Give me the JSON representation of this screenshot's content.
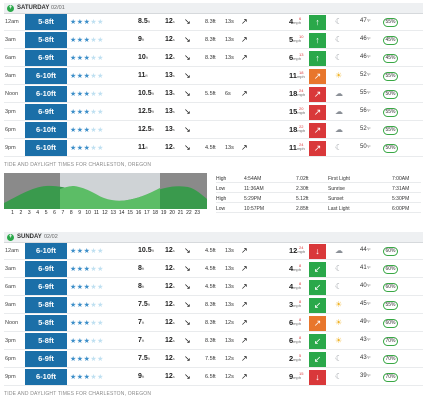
{
  "days": [
    {
      "name": "SATURDAY",
      "date": "02/01",
      "tide_title": "TIDE AND DAYLIGHT TIMES FOR CHARLESTON, OREGON",
      "rows": [
        {
          "time": "12am",
          "size": "5-8ft",
          "stars": 3,
          "height": "8.5",
          "height_unit": "ft",
          "period": "12",
          "period_unit": "s",
          "swell_dir": "↘",
          "sw2h": "8.3ft",
          "sw2p": "13s",
          "sw2_dir": "↗",
          "wind": "4",
          "wind_unit": "mph",
          "gust": "6",
          "wind_color": "#2aa84a",
          "wind_arrow": "↑",
          "weather": "moon",
          "temp": "47",
          "temp_unit": "°F",
          "pct": "55%"
        },
        {
          "time": "3am",
          "size": "5-8ft",
          "stars": 3,
          "height": "9",
          "height_unit": "ft",
          "period": "12",
          "period_unit": "s",
          "swell_dir": "↘",
          "sw2h": "8.3ft",
          "sw2p": "13s",
          "sw2_dir": "↗",
          "wind": "5",
          "wind_unit": "mph",
          "gust": "10",
          "wind_color": "#2aa84a",
          "wind_arrow": "↑",
          "weather": "moon",
          "temp": "46",
          "temp_unit": "°F",
          "pct": "45%"
        },
        {
          "time": "6am",
          "size": "6-9ft",
          "stars": 3,
          "height": "10",
          "height_unit": "ft",
          "period": "12",
          "period_unit": "s",
          "swell_dir": "↘",
          "sw2h": "8.3ft",
          "sw2p": "13s",
          "sw2_dir": "↗",
          "wind": "6",
          "wind_unit": "mph",
          "gust": "13",
          "wind_color": "#2aa84a",
          "wind_arrow": "↑",
          "weather": "moon",
          "temp": "46",
          "temp_unit": "°F",
          "pct": "45%"
        },
        {
          "time": "9am",
          "size": "6-10ft",
          "stars": 3,
          "height": "11",
          "height_unit": "ft",
          "period": "13",
          "period_unit": "s",
          "swell_dir": "↘",
          "sw2h": "",
          "sw2p": "",
          "sw2_dir": "",
          "wind": "11",
          "wind_unit": "mph",
          "gust": "18",
          "wind_color": "#e8762c",
          "wind_arrow": "↗",
          "weather": "sun",
          "temp": "52",
          "temp_unit": "°F",
          "pct": "55%"
        },
        {
          "time": "Noon",
          "size": "6-10ft",
          "stars": 3,
          "height": "10.5",
          "height_unit": "ft",
          "period": "13",
          "period_unit": "s",
          "swell_dir": "↘",
          "sw2h": "5.5ft",
          "sw2p": "6s",
          "sw2_dir": "↗",
          "wind": "18",
          "wind_unit": "mph",
          "gust": "24",
          "wind_color": "#d9383a",
          "wind_arrow": "↗",
          "weather": "cloud",
          "temp": "55",
          "temp_unit": "°F",
          "pct": "50%"
        },
        {
          "time": "3pm",
          "size": "6-9ft",
          "stars": 3,
          "height": "12.5",
          "height_unit": "ft",
          "period": "13",
          "period_unit": "s",
          "swell_dir": "↘",
          "sw2h": "",
          "sw2p": "",
          "sw2_dir": "",
          "wind": "15",
          "wind_unit": "mph",
          "gust": "20",
          "wind_color": "#d9383a",
          "wind_arrow": "↗",
          "weather": "cloud",
          "temp": "56",
          "temp_unit": "°F",
          "pct": "55%"
        },
        {
          "time": "6pm",
          "size": "6-10ft",
          "stars": 3,
          "height": "12.5",
          "height_unit": "ft",
          "period": "13",
          "period_unit": "s",
          "swell_dir": "↘",
          "sw2h": "",
          "sw2p": "",
          "sw2_dir": "",
          "wind": "18",
          "wind_unit": "mph",
          "gust": "22",
          "wind_color": "#d9383a",
          "wind_arrow": "↗",
          "weather": "cloud",
          "temp": "52",
          "temp_unit": "°F",
          "pct": "55%"
        },
        {
          "time": "9pm",
          "size": "6-10ft",
          "stars": 3,
          "height": "11",
          "height_unit": "ft",
          "period": "12",
          "period_unit": "s",
          "swell_dir": "↘",
          "sw2h": "4.5ft",
          "sw2p": "13s",
          "sw2_dir": "↗",
          "wind": "11",
          "wind_unit": "mph",
          "gust": "24",
          "wind_color": "#d9383a",
          "wind_arrow": "↗",
          "weather": "moon",
          "temp": "50",
          "temp_unit": "°F",
          "pct": "50%"
        }
      ]
    },
    {
      "name": "SUNDAY",
      "date": "02/02",
      "tide_title": "TIDE AND DAYLIGHT TIMES FOR CHARLESTON, OREGON",
      "rows": [
        {
          "time": "12am",
          "size": "6-10ft",
          "stars": 3,
          "height": "10.5",
          "height_unit": "ft",
          "period": "12",
          "period_unit": "s",
          "swell_dir": "↘",
          "sw2h": "4.5ft",
          "sw2p": "13s",
          "sw2_dir": "↗",
          "wind": "12",
          "wind_unit": "mph",
          "gust": "24",
          "wind_color": "#d9383a",
          "wind_arrow": "↓",
          "weather": "cloud",
          "temp": "44",
          "temp_unit": "°F",
          "pct": "60%"
        },
        {
          "time": "3am",
          "size": "6-9ft",
          "stars": 3,
          "height": "8",
          "height_unit": "ft",
          "period": "12",
          "period_unit": "s",
          "swell_dir": "↘",
          "sw2h": "4.5ft",
          "sw2p": "13s",
          "sw2_dir": "↗",
          "wind": "4",
          "wind_unit": "mph",
          "gust": "8",
          "wind_color": "#2aa84a",
          "wind_arrow": "↙",
          "weather": "moon",
          "temp": "41",
          "temp_unit": "°F",
          "pct": "60%"
        },
        {
          "time": "6am",
          "size": "6-9ft",
          "stars": 3,
          "height": "8",
          "height_unit": "ft",
          "period": "12",
          "period_unit": "s",
          "swell_dir": "↘",
          "sw2h": "4.5ft",
          "sw2p": "13s",
          "sw2_dir": "↗",
          "wind": "4",
          "wind_unit": "mph",
          "gust": "8",
          "wind_color": "#2aa84a",
          "wind_arrow": "↙",
          "weather": "moon",
          "temp": "40",
          "temp_unit": "°F",
          "pct": "60%"
        },
        {
          "time": "9am",
          "size": "5-8ft",
          "stars": 3,
          "height": "7.5",
          "height_unit": "ft",
          "period": "12",
          "period_unit": "s",
          "swell_dir": "↘",
          "sw2h": "8.3ft",
          "sw2p": "13s",
          "sw2_dir": "↗",
          "wind": "3",
          "wind_unit": "mph",
          "gust": "8",
          "wind_color": "#2aa84a",
          "wind_arrow": "↙",
          "weather": "sun",
          "temp": "45",
          "temp_unit": "°F",
          "pct": "55%"
        },
        {
          "time": "Noon",
          "size": "5-8ft",
          "stars": 3,
          "height": "7",
          "height_unit": "ft",
          "period": "12",
          "period_unit": "s",
          "swell_dir": "↘",
          "sw2h": "8.3ft",
          "sw2p": "12s",
          "sw2_dir": "↗",
          "wind": "6",
          "wind_unit": "mph",
          "gust": "8",
          "wind_color": "#e8762c",
          "wind_arrow": "↗",
          "weather": "sun",
          "temp": "49",
          "temp_unit": "°F",
          "pct": "60%"
        },
        {
          "time": "3pm",
          "size": "5-8ft",
          "stars": 3,
          "height": "7",
          "height_unit": "ft",
          "period": "12",
          "period_unit": "s",
          "swell_dir": "↘",
          "sw2h": "8.3ft",
          "sw2p": "13s",
          "sw2_dir": "↗",
          "wind": "6",
          "wind_unit": "mph",
          "gust": "8",
          "wind_color": "#2aa84a",
          "wind_arrow": "↙",
          "weather": "sun",
          "temp": "43",
          "temp_unit": "°F",
          "pct": "70%"
        },
        {
          "time": "6pm",
          "size": "6-9ft",
          "stars": 3,
          "height": "7.5",
          "height_unit": "ft",
          "period": "12",
          "period_unit": "s",
          "swell_dir": "↘",
          "sw2h": "7.5ft",
          "sw2p": "12s",
          "sw2_dir": "↗",
          "wind": "2",
          "wind_unit": "mph",
          "gust": "5",
          "wind_color": "#2aa84a",
          "wind_arrow": "↙",
          "weather": "moon",
          "temp": "43",
          "temp_unit": "°F",
          "pct": "70%"
        },
        {
          "time": "9pm",
          "size": "6-10ft",
          "stars": 3,
          "height": "9",
          "height_unit": "ft",
          "period": "12",
          "period_unit": "s",
          "swell_dir": "↘",
          "sw2h": "6.5ft",
          "sw2p": "12s",
          "sw2_dir": "↗",
          "wind": "9",
          "wind_unit": "mph",
          "gust": "15",
          "wind_color": "#d9383a",
          "wind_arrow": "↓",
          "weather": "moon",
          "temp": "39",
          "temp_unit": "°F",
          "pct": "70%"
        }
      ]
    }
  ],
  "tide": {
    "hours": [
      "1",
      "2",
      "3",
      "4",
      "5",
      "6",
      "7",
      "8",
      "9",
      "10",
      "11",
      "12",
      "13",
      "14",
      "15",
      "16",
      "17",
      "18",
      "19",
      "20",
      "21",
      "22",
      "23"
    ],
    "table": [
      {
        "type": "High",
        "time": "4:54AM",
        "height": "7.02ft",
        "label": "First Light",
        "label_time": "7:00AM"
      },
      {
        "type": "Low",
        "time": "11:36AM",
        "height": "2.30ft",
        "label": "Sunrise",
        "label_time": "7:31AM"
      },
      {
        "type": "High",
        "time": "5:29PM",
        "height": "5.12ft",
        "label": "Sunset",
        "label_time": "5:30PM"
      },
      {
        "type": "Low",
        "time": "10:57PM",
        "height": "2.85ft",
        "label": "Last Light",
        "label_time": "6:00PM"
      }
    ]
  },
  "colors": {
    "rating_on": "#3d8fc9",
    "rating_off": "#bfe0f1",
    "size_bg": "#1b6fa8",
    "green": "#2aa84a",
    "orange": "#e8762c",
    "red": "#d9383a"
  }
}
